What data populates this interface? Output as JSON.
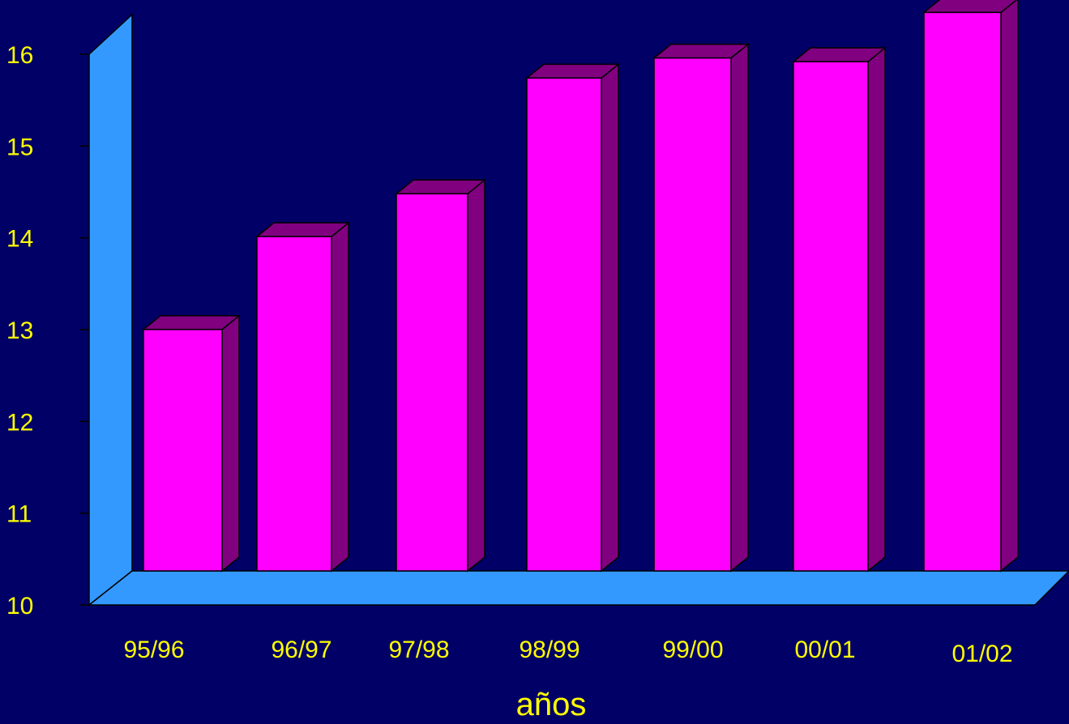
{
  "chart_data": {
    "type": "bar",
    "title": "",
    "xlabel": "años",
    "ylabel": "",
    "categories": [
      "95/96",
      "96/97",
      "97/98",
      "98/99",
      "99/00",
      "00/01",
      "01/02"
    ],
    "values": [
      12.65,
      13.67,
      14.14,
      15.41,
      15.63,
      15.59,
      16.13
    ],
    "ylim": [
      10,
      16
    ],
    "yticks": [
      "10",
      "11",
      "12",
      "13",
      "14",
      "15",
      "16"
    ],
    "grid": false,
    "legend": "none",
    "colors": {
      "background": "#000066",
      "bar_front": "#ff00ff",
      "bar_side": "#800080",
      "floor_wall": "#3399ff",
      "text": "#ffff00"
    }
  }
}
